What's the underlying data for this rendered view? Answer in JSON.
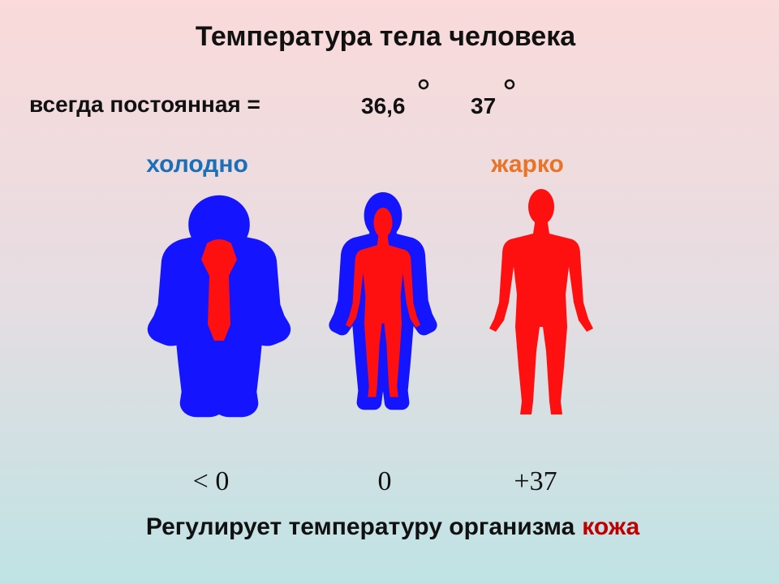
{
  "header": {
    "title": "Температура тела человека",
    "subtitle": "всегда постоянная =",
    "values": [
      "36,6",
      "37"
    ]
  },
  "states": {
    "cold": "холодно",
    "hot": "жарко"
  },
  "temperatures": [
    "< 0",
    "0",
    "+37"
  ],
  "footer": {
    "text": "Регулирует температуру организма",
    "highlight": "кожа"
  }
}
